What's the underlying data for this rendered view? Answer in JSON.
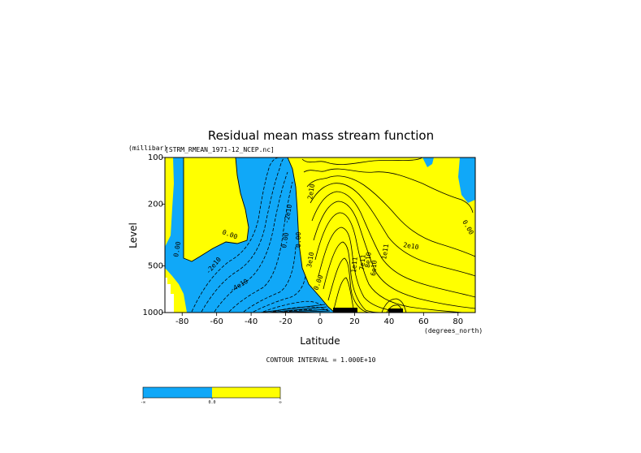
{
  "chart_data": {
    "type": "contour",
    "title": "Residual mean mass stream function",
    "subtitle": "[STRM_RMEAN_1971-12_NCEP.nc]",
    "xlabel": "Latitude",
    "x_units": "(degrees_north)",
    "ylabel": "Level",
    "y_units": "(millibar)",
    "xlim": [
      -90,
      90
    ],
    "ylim": [
      1000,
      100
    ],
    "y_scale": "log",
    "x_ticks": [
      -80,
      -60,
      -40,
      -20,
      0,
      20,
      40,
      60,
      80
    ],
    "y_ticks": [
      1000,
      500,
      200,
      100
    ],
    "contour_interval_text": "CONTOUR INTERVAL = 1.000E+10",
    "contour_labels": [
      "0.00",
      "0.00",
      "-2e10",
      "-4e10",
      "0.00",
      "-2e10",
      "0.00",
      "2e10",
      "3e10",
      "0.00",
      "1e11",
      "7e11",
      "8e10",
      "6e10",
      "1e11",
      "2e10",
      "0.00"
    ],
    "shading": [
      {
        "range": "negative",
        "color": "#10a8f8"
      },
      {
        "range": "positive",
        "color": "#ffff00"
      }
    ],
    "colorbar": {
      "labels": [
        "-∞",
        "0.0",
        "∞"
      ],
      "colors": [
        "#10a8f8",
        "#ffff00"
      ]
    }
  }
}
